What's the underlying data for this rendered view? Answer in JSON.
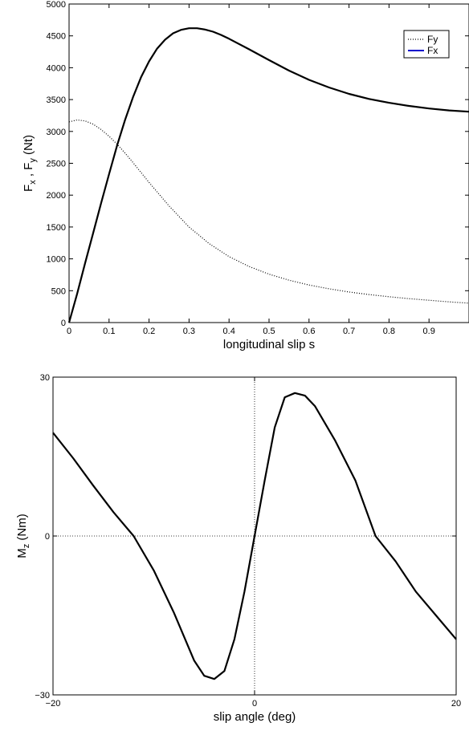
{
  "chart_data": [
    {
      "type": "line",
      "xlabel": "longitudinal slip s",
      "ylabel": {
        "parts": [
          "F",
          "x",
          " , F",
          "y",
          " (Nt)"
        ]
      },
      "xlim": [
        0,
        1
      ],
      "ylim": [
        0,
        5000
      ],
      "xticks": [
        "0",
        "0.1",
        "0.2",
        "0.3",
        "0.4",
        "0.5",
        "0.6",
        "0.7",
        "0.8",
        "0.9"
      ],
      "xtick_values": [
        0,
        0.1,
        0.2,
        0.3,
        0.4,
        0.5,
        0.6,
        0.7,
        0.8,
        0.9
      ],
      "yticks": [
        "0",
        "500",
        "1000",
        "1500",
        "2000",
        "2500",
        "3000",
        "3500",
        "4000",
        "4500",
        "5000"
      ],
      "ytick_values": [
        0,
        500,
        1000,
        1500,
        2000,
        2500,
        3000,
        3500,
        4000,
        4500,
        5000
      ],
      "legend": {
        "placement": "top-right"
      },
      "series": [
        {
          "name": "Fy",
          "style": "dotted",
          "color": "#000000",
          "x": [
            0,
            0.02,
            0.04,
            0.06,
            0.08,
            0.1,
            0.12,
            0.14,
            0.16,
            0.18,
            0.2,
            0.25,
            0.3,
            0.35,
            0.4,
            0.45,
            0.5,
            0.55,
            0.6,
            0.65,
            0.7,
            0.75,
            0.8,
            0.85,
            0.9,
            0.95,
            1.0
          ],
          "y": [
            3150,
            3180,
            3165,
            3115,
            3030,
            2925,
            2800,
            2660,
            2510,
            2355,
            2200,
            1830,
            1500,
            1240,
            1035,
            880,
            760,
            665,
            590,
            530,
            480,
            440,
            405,
            375,
            350,
            325,
            305
          ]
        },
        {
          "name": "Fx",
          "style": "solid",
          "color": "#000000",
          "x": [
            0,
            0.02,
            0.04,
            0.06,
            0.08,
            0.1,
            0.12,
            0.14,
            0.16,
            0.18,
            0.2,
            0.22,
            0.24,
            0.26,
            0.28,
            0.3,
            0.32,
            0.34,
            0.36,
            0.38,
            0.4,
            0.45,
            0.5,
            0.55,
            0.6,
            0.65,
            0.7,
            0.75,
            0.8,
            0.85,
            0.9,
            0.95,
            1.0
          ],
          "y": [
            0,
            450,
            930,
            1400,
            1870,
            2330,
            2780,
            3180,
            3540,
            3850,
            4100,
            4300,
            4440,
            4540,
            4595,
            4620,
            4620,
            4600,
            4565,
            4515,
            4455,
            4290,
            4120,
            3955,
            3810,
            3690,
            3590,
            3510,
            3450,
            3400,
            3360,
            3330,
            3310
          ]
        }
      ]
    },
    {
      "type": "line",
      "xlabel": "slip angle (deg)",
      "ylabel": {
        "parts": [
          "M",
          "z",
          " (Nm)"
        ]
      },
      "xlim": [
        -20,
        20
      ],
      "ylim": [
        -30,
        30
      ],
      "xticks": [
        "−20",
        "0",
        "20"
      ],
      "xtick_values": [
        -20,
        0,
        20
      ],
      "yticks": [
        "−30",
        "0",
        "30"
      ],
      "ytick_values": [
        -30,
        0,
        30
      ],
      "grid": "zero lines dotted",
      "series": [
        {
          "style": "solid",
          "color": "#000000",
          "x": [
            -20,
            -18,
            -16,
            -14,
            -12,
            -10,
            -8,
            -6,
            -5,
            -4,
            -3,
            -2,
            -1,
            0,
            1,
            2,
            3,
            4,
            5,
            6,
            8,
            10,
            12,
            14,
            16,
            18,
            20
          ],
          "y": [
            19.5,
            14.7,
            9.5,
            4.5,
            0,
            -6.5,
            -14.5,
            -23.5,
            -26.4,
            -27.0,
            -25.5,
            -19.5,
            -10.5,
            0,
            10.5,
            20.5,
            26.2,
            27.0,
            26.5,
            24.5,
            18.0,
            10.5,
            0,
            -4.8,
            -10.5,
            -15.0,
            -19.5
          ]
        }
      ]
    }
  ]
}
